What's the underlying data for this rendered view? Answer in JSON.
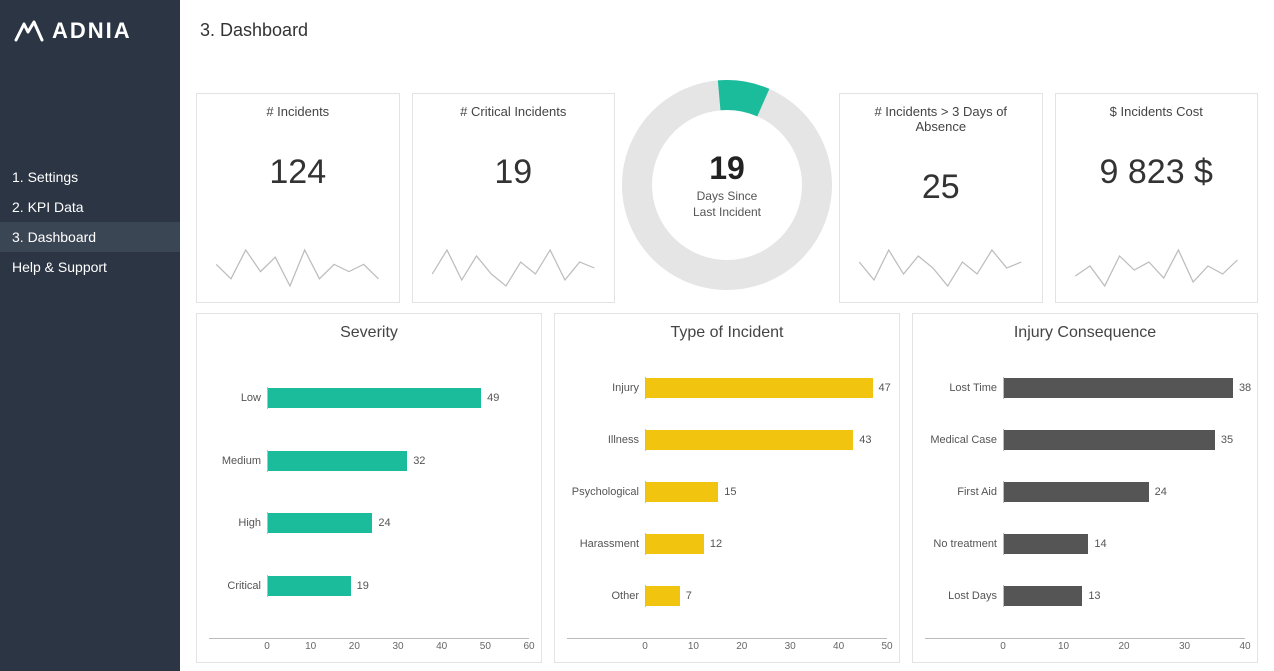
{
  "brand": {
    "name": "ADNIA"
  },
  "sidebar": {
    "items": [
      {
        "label": "1. Settings"
      },
      {
        "label": "2. KPI Data"
      },
      {
        "label": "3. Dashboard",
        "active": true
      },
      {
        "label": "Help & Support"
      }
    ]
  },
  "page": {
    "title": "3. Dashboard"
  },
  "colors": {
    "sidebar_bg": "#2b3543",
    "sidebar_active_bg": "#3b4654",
    "card_border": "#e3e3e3",
    "text_primary": "#333333",
    "text_muted": "#555555",
    "spark_stroke": "#bdbdbd",
    "axis": "#bbbbbb",
    "donut_track": "#e5e5e5",
    "donut_accent": "#1abc9c",
    "bar_teal": "#1abc9c",
    "bar_yellow": "#f1c40f",
    "bar_gray": "#555555"
  },
  "kpis": [
    {
      "label": "# Incidents",
      "value": "124",
      "spark": [
        6,
        5,
        7,
        5.5,
        6.5,
        4.5,
        7,
        5,
        6,
        5.5,
        6,
        5
      ]
    },
    {
      "label": "# Critical Incidents",
      "value": "19",
      "spark": [
        5,
        7,
        4.5,
        6.5,
        5,
        4,
        6,
        5,
        7,
        4.5,
        6,
        5.5
      ]
    },
    {
      "label": "# Incidents > 3 Days of Absence",
      "value": "25",
      "spark": [
        6,
        4.5,
        7,
        5,
        6.5,
        5.5,
        4,
        6,
        5,
        7,
        5.5,
        6
      ]
    },
    {
      "label": "$ Incidents Cost",
      "value": "9 823 $",
      "spark": [
        5.5,
        6,
        5,
        6.5,
        5.8,
        6.2,
        5.4,
        6.8,
        5.2,
        6,
        5.6,
        6.3
      ]
    }
  ],
  "donut": {
    "value": "19",
    "line1": "Days Since",
    "line2": "Last Incident",
    "percent": 0.08,
    "start_angle_deg": -5
  },
  "charts": [
    {
      "title": "Severity",
      "type": "bar",
      "color": "#1abc9c",
      "label_width": 58,
      "xmax": 60,
      "tick_step": 10,
      "data": [
        {
          "cat": "Low",
          "val": 49
        },
        {
          "cat": "Medium",
          "val": 32
        },
        {
          "cat": "High",
          "val": 24
        },
        {
          "cat": "Critical",
          "val": 19
        }
      ]
    },
    {
      "title": "Type of Incident",
      "type": "bar",
      "color": "#f1c40f",
      "label_width": 78,
      "xmax": 50,
      "tick_step": 10,
      "data": [
        {
          "cat": "Injury",
          "val": 47
        },
        {
          "cat": "Illness",
          "val": 43
        },
        {
          "cat": "Psychological",
          "val": 15
        },
        {
          "cat": "Harassment",
          "val": 12
        },
        {
          "cat": "Other",
          "val": 7
        }
      ]
    },
    {
      "title": "Injury Consequence",
      "type": "bar",
      "color": "#555555",
      "label_width": 78,
      "xmax": 40,
      "tick_step": 10,
      "data": [
        {
          "cat": "Lost Time",
          "val": 38
        },
        {
          "cat": "Medical Case",
          "val": 35
        },
        {
          "cat": "First Aid",
          "val": 24
        },
        {
          "cat": "No treatment",
          "val": 14
        },
        {
          "cat": "Lost Days",
          "val": 13
        }
      ]
    }
  ]
}
